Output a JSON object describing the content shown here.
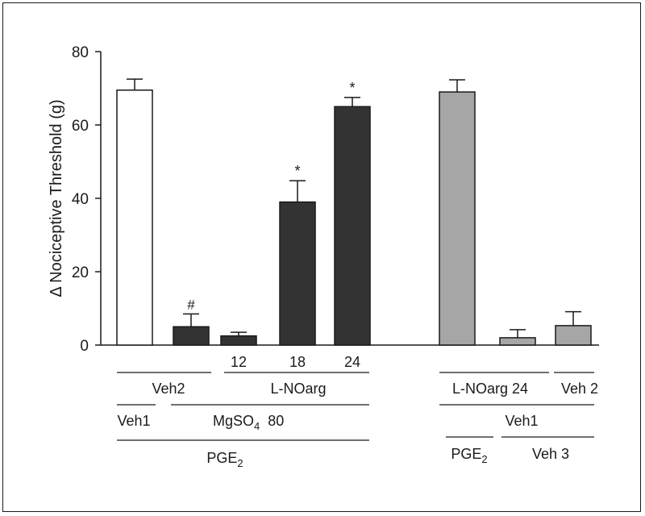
{
  "chart_data": {
    "type": "bar",
    "ylabel": "Δ Nociceptive Threshold (g)",
    "ylim": [
      0,
      80
    ],
    "yticks": [
      0,
      20,
      40,
      60,
      80
    ],
    "colors": {
      "white": "#ffffff",
      "dark": "#333333",
      "gray": "#a6a6a6",
      "stroke": "#1a1a1a"
    },
    "bars": [
      {
        "value": 69.5,
        "error": 3.0,
        "color": "white",
        "annotation": ""
      },
      {
        "value": 5.0,
        "error": 3.5,
        "color": "dark",
        "annotation": "#"
      },
      {
        "value": 2.5,
        "error": 1.0,
        "color": "dark",
        "annotation": ""
      },
      {
        "value": 39.0,
        "error": 5.8,
        "color": "dark",
        "annotation": "*"
      },
      {
        "value": 65.0,
        "error": 2.5,
        "color": "dark",
        "annotation": "*"
      },
      {
        "value": 69.0,
        "error": 3.3,
        "color": "gray",
        "annotation": ""
      },
      {
        "value": 2.0,
        "error": 2.2,
        "color": "gray",
        "annotation": ""
      },
      {
        "value": 5.3,
        "error": 3.8,
        "color": "gray",
        "annotation": ""
      }
    ],
    "dose_labels": [
      "12",
      "18",
      "24"
    ],
    "treatment_labels": {
      "veh2": "Veh2",
      "lnoarg": "L-NOarg",
      "veh1_left": "Veh1",
      "mgso4_main": "MgSO",
      "mgso4_sub": "4",
      "mgso4_dose": "80",
      "pge2_left_main": "PGE",
      "pge2_left_sub": "2",
      "lnoarg24": "L-NOarg 24",
      "veh2_right": "Veh 2",
      "veh1_right": "Veh1",
      "pge2_right_main": "PGE",
      "pge2_right_sub": "2",
      "veh3": "Veh 3"
    }
  }
}
